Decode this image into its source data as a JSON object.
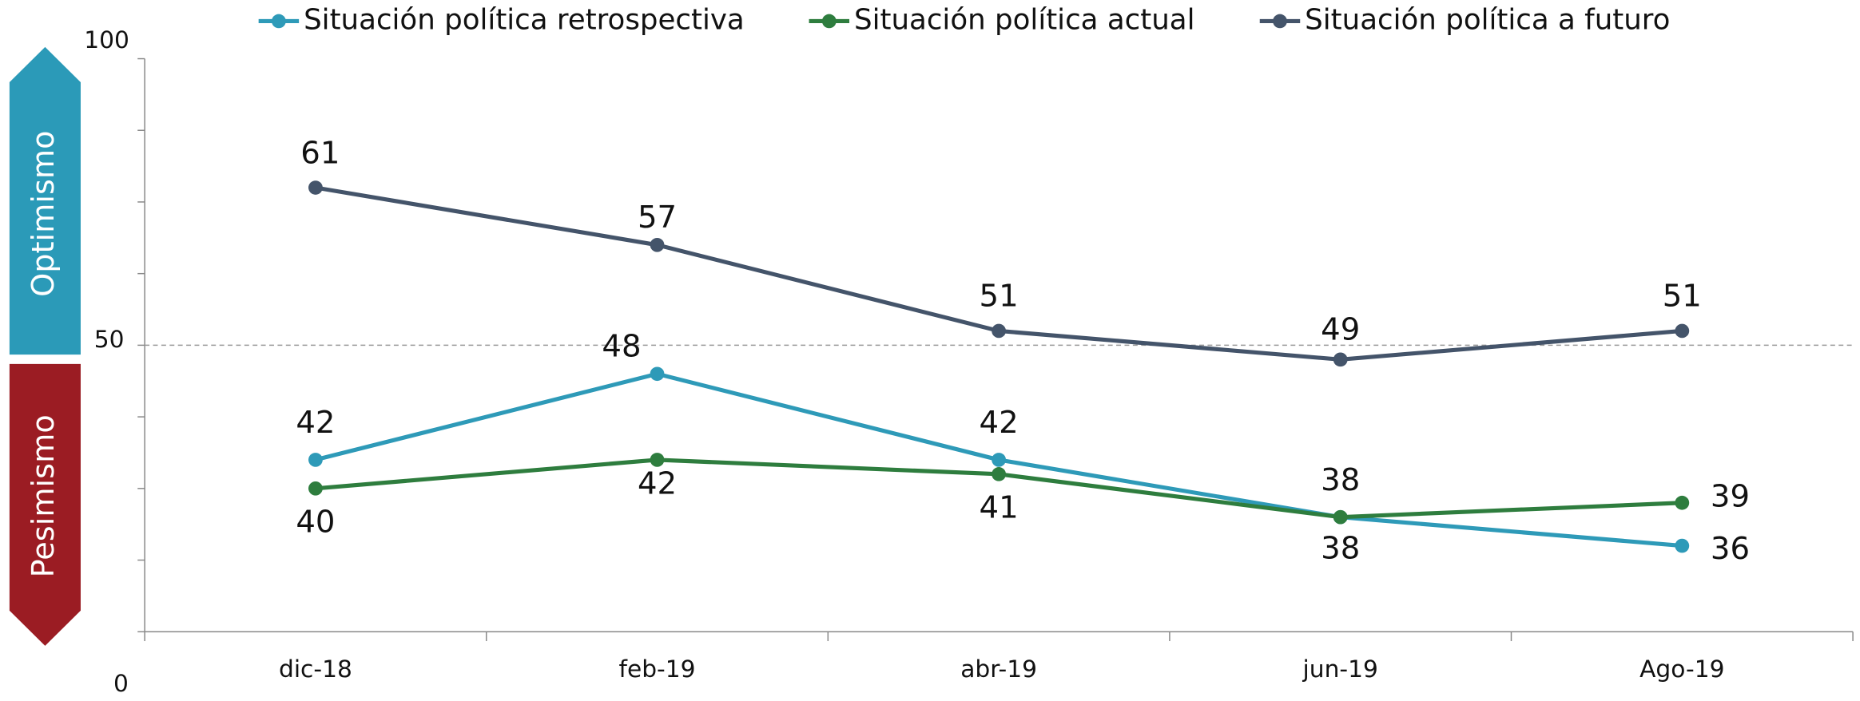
{
  "chart_data": {
    "type": "line",
    "categories": [
      "dic-18",
      "feb-19",
      "abr-19",
      "jun-19",
      "Ago-19"
    ],
    "series": [
      {
        "name": "Situación política retrospectiva",
        "color": "#2e9ab8",
        "values": [
          42,
          48,
          42,
          38,
          36
        ]
      },
      {
        "name": "Situación política actual",
        "color": "#2e7d3e",
        "values": [
          40,
          42,
          41,
          38,
          39
        ]
      },
      {
        "name": "Situación política a futuro",
        "color": "#44546a",
        "values": [
          61,
          57,
          51,
          49,
          51
        ]
      }
    ],
    "ylim": [
      30,
      70
    ],
    "yticks": [
      30,
      35,
      40,
      45,
      50,
      55,
      60,
      65,
      70
    ],
    "y_axis_labels": [
      "100",
      "50",
      "0"
    ],
    "reference_line": 50,
    "bands": [
      {
        "label": "Optimismo",
        "color": "#2b9ab8"
      },
      {
        "label": "Pesimismo",
        "color": "#9b1c23"
      }
    ],
    "legend": "top"
  }
}
